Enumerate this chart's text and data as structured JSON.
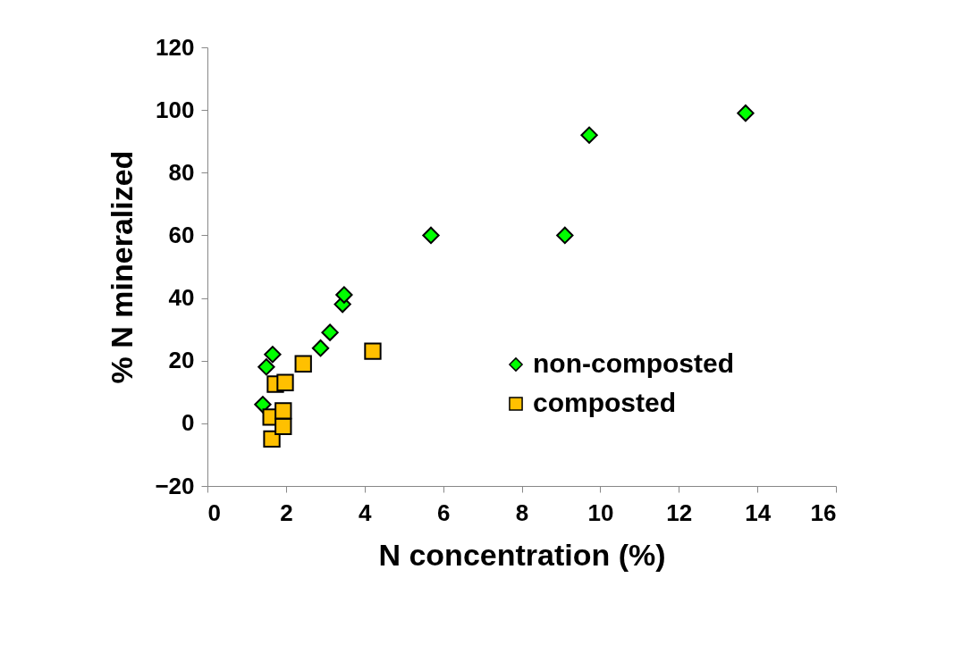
{
  "chart_data": {
    "type": "scatter",
    "xlabel": "N concentration (%)",
    "ylabel": "% N mineralized",
    "xlim": [
      0,
      16
    ],
    "xticks": [
      0,
      2,
      4,
      6,
      8,
      10,
      12,
      14,
      16
    ],
    "ylim": [
      -20,
      120
    ],
    "yticks": [
      -20,
      0,
      20,
      40,
      60,
      80,
      100,
      120
    ],
    "grid": false,
    "legend": "right",
    "series": [
      {
        "name": "non-composted",
        "color": "#00ff00",
        "marker": "diamond",
        "x": [
          1.41,
          1.5,
          1.66,
          2.88,
          3.12,
          3.44,
          3.48,
          5.69,
          9.1,
          9.72,
          13.7
        ],
        "values": [
          6,
          18,
          22,
          24,
          29,
          38,
          41,
          60,
          60,
          92,
          99
        ]
      },
      {
        "name": "composted",
        "color": "#ffc000",
        "marker": "square",
        "x": [
          1.64,
          1.62,
          1.93,
          1.93,
          1.73,
          1.98,
          2.44,
          4.21
        ],
        "values": [
          -5,
          2,
          -1,
          4,
          12.5,
          13,
          19,
          23
        ]
      }
    ]
  }
}
